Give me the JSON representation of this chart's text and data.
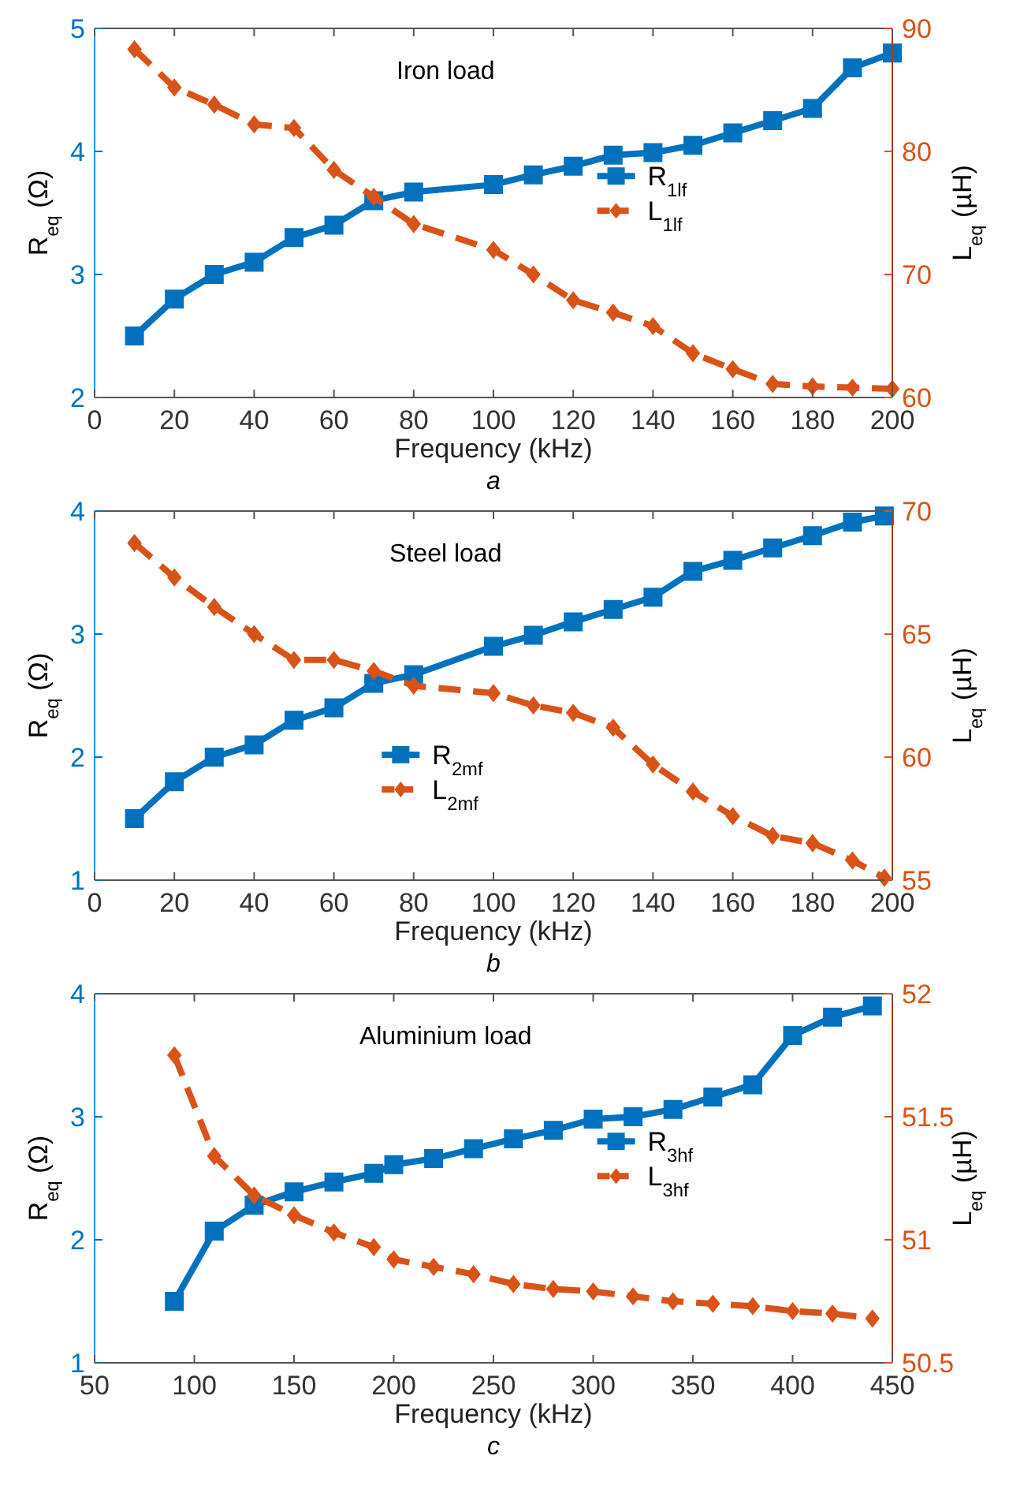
{
  "chart_data": [
    {
      "type": "line",
      "title": "Iron load",
      "xlabel": "Frequency (kHz)",
      "ylabel": "R$_{eq}$ (Ω)",
      "y2label": "L$_{eq}$ (µH)",
      "annotations": [
        "a"
      ],
      "x": [
        10,
        20,
        30,
        40,
        50,
        60,
        70,
        80,
        100,
        110,
        120,
        130,
        140,
        150,
        160,
        170,
        180,
        190,
        200
      ],
      "xlim": [
        0,
        200
      ],
      "xticks": [
        0,
        20,
        40,
        60,
        80,
        100,
        120,
        140,
        160,
        180,
        200
      ],
      "ylim": [
        2,
        5
      ],
      "yticks": [
        2,
        3,
        4,
        5
      ],
      "y2lim": [
        60,
        90
      ],
      "y2ticks": [
        60,
        70,
        80,
        90
      ],
      "grid": false,
      "legend": "right",
      "series": [
        {
          "name": "R$_{1lf}$",
          "color": "#0072bd",
          "marker": "square",
          "line_style": "solid",
          "values": [
            2.5,
            2.8,
            3.0,
            3.1,
            3.3,
            3.4,
            3.6,
            3.67,
            3.73,
            3.81,
            3.88,
            3.97,
            3.99,
            4.05,
            4.15,
            4.25,
            4.35,
            4.68,
            4.8
          ]
        },
        {
          "name": "L$_{1lf}$",
          "color": "#d95319",
          "marker": "diamond",
          "line_style": "dashed",
          "axis": "y2",
          "values": [
            88.3,
            85.2,
            83.8,
            82.2,
            81.9,
            78.5,
            76.3,
            74.1,
            72.0,
            70.0,
            67.9,
            66.9,
            65.8,
            63.6,
            62.3,
            61.1,
            60.9,
            60.8,
            60.7
          ]
        }
      ]
    },
    {
      "type": "line",
      "title": "Steel load",
      "xlabel": "Frequency (kHz)",
      "ylabel": "R$_{eq}$ (Ω)",
      "y2label": "L$_{eq}$ (µH)",
      "annotations": [
        "b"
      ],
      "x": [
        10,
        20,
        30,
        40,
        50,
        60,
        70,
        80,
        100,
        110,
        120,
        130,
        140,
        150,
        160,
        170,
        180,
        190,
        198
      ],
      "xlim": [
        0,
        200
      ],
      "xticks": [
        0,
        20,
        40,
        60,
        80,
        100,
        120,
        140,
        160,
        180,
        200
      ],
      "ylim": [
        1,
        4
      ],
      "yticks": [
        1,
        2,
        3,
        4
      ],
      "y2lim": [
        55,
        70
      ],
      "y2ticks": [
        55,
        60,
        65,
        70
      ],
      "grid": false,
      "legend": "bottom",
      "series": [
        {
          "name": "R$_{2mf}$",
          "color": "#0072bd",
          "marker": "square",
          "line_style": "solid",
          "values": [
            1.5,
            1.8,
            2.0,
            2.1,
            2.3,
            2.4,
            2.6,
            2.67,
            2.9,
            2.99,
            3.1,
            3.2,
            3.3,
            3.51,
            3.6,
            3.7,
            3.8,
            3.91,
            3.96
          ]
        },
        {
          "name": "L$_{2mf}$",
          "color": "#d95319",
          "marker": "diamond",
          "line_style": "dashed",
          "axis": "y2",
          "values": [
            68.7,
            67.3,
            66.1,
            65.0,
            63.95,
            63.95,
            63.5,
            62.9,
            62.6,
            62.1,
            61.8,
            61.2,
            59.7,
            58.6,
            57.6,
            56.8,
            56.5,
            55.8,
            55.1
          ]
        }
      ]
    },
    {
      "type": "line",
      "title": "Aluminium load",
      "xlabel": "Frequency (kHz)",
      "ylabel": "R$_{eq}$ (Ω)",
      "y2label": "L$_{eq}$ (µH)",
      "annotations": [
        "c"
      ],
      "x": [
        90,
        110,
        130,
        150,
        170,
        190,
        200,
        220,
        240,
        260,
        280,
        300,
        320,
        340,
        360,
        380,
        400,
        420,
        440
      ],
      "xlim": [
        50,
        450
      ],
      "xticks": [
        50,
        100,
        150,
        200,
        250,
        300,
        350,
        400,
        450
      ],
      "ylim": [
        1,
        4
      ],
      "yticks": [
        1,
        2,
        3,
        4
      ],
      "y2lim": [
        50.5,
        52
      ],
      "y2ticks": [
        50.5,
        51,
        51.5,
        52
      ],
      "grid": false,
      "legend": "right",
      "series": [
        {
          "name": "R$_{3hf}$",
          "color": "#0072bd",
          "marker": "square",
          "line_style": "solid",
          "values": [
            1.5,
            2.07,
            2.28,
            2.39,
            2.47,
            2.54,
            2.61,
            2.66,
            2.74,
            2.82,
            2.89,
            2.98,
            3.0,
            3.06,
            3.16,
            3.26,
            3.66,
            3.81,
            3.9
          ]
        },
        {
          "name": "L$_{3hf}$",
          "color": "#d95319",
          "marker": "diamond",
          "line_style": "dashed",
          "axis": "y2",
          "values": [
            51.75,
            51.34,
            51.18,
            51.1,
            51.03,
            50.97,
            50.92,
            50.89,
            50.86,
            50.82,
            50.8,
            50.79,
            50.77,
            50.75,
            50.74,
            50.73,
            50.71,
            50.7,
            50.68
          ]
        }
      ]
    }
  ]
}
